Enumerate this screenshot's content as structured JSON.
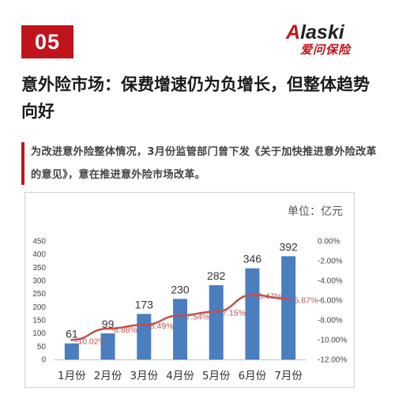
{
  "badge": {
    "number": "05"
  },
  "logo": {
    "brand_en": "Alaski",
    "brand_cn": "爱问保险"
  },
  "headline": "意外险市场：保费增速仍为负增长，但整体趋势向好",
  "quote": "为改进意外险整体情况，3月份监管部门曾下发《关于加快推进意外险改革的意见》，意在推进意外险市场改革。",
  "colors": {
    "accent": "#c0141c",
    "bar": "#4a7ebf",
    "line": "#c0504d"
  },
  "chart_data": {
    "type": "bar+line",
    "unit_label": "单位：亿元",
    "categories": [
      "1月份",
      "2月份",
      "3月份",
      "4月份",
      "5月份",
      "6月份",
      "7月份"
    ],
    "bars": {
      "values": [
        61,
        99,
        173,
        230,
        282,
        346,
        392
      ],
      "ylim": [
        0,
        450
      ],
      "ticks": [
        "0",
        "50",
        "100",
        "150",
        "200",
        "250",
        "300",
        "350",
        "400",
        "450"
      ]
    },
    "line": {
      "values": [
        -10.02,
        -8.88,
        -8.49,
        -7.54,
        -7.15,
        -5.47,
        -5.87
      ],
      "labels": [
        "-10.02%",
        "-8.88%",
        "-8.49%",
        "-7.54%",
        "-7.15%",
        "-5.47%",
        "-5.87%"
      ],
      "ylim": [
        -12,
        0
      ],
      "ticks": [
        "0.00%",
        "-2.00%",
        "-4.00%",
        "-6.00%",
        "-8.00%",
        "-10.00%",
        "-12.00%"
      ]
    }
  }
}
